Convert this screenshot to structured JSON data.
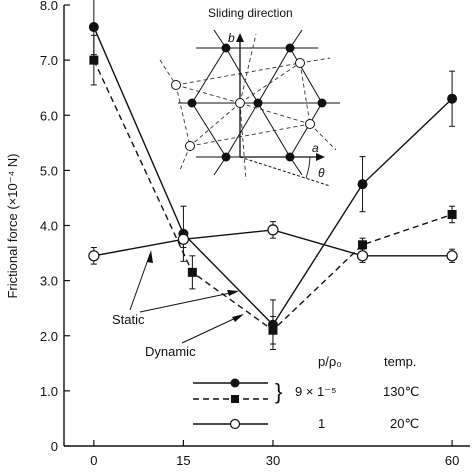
{
  "chart_data": {
    "type": "line",
    "title": "",
    "xlabel": "",
    "ylabel": "Frictional force (×10⁻⁴ N)",
    "xlim": [
      -5,
      63
    ],
    "ylim": [
      0,
      8.0
    ],
    "x_ticks": [
      0,
      15,
      30,
      60
    ],
    "y_ticks": [
      "0",
      "1.0",
      "2.0",
      "3.0",
      "4.0",
      "5.0",
      "6.0",
      "7.0",
      "8.0"
    ],
    "series": [
      {
        "style": "solid",
        "marker": "filled-circle",
        "x": [
          0,
          15,
          30,
          45,
          60
        ],
        "y": [
          7.6,
          3.85,
          2.2,
          4.75,
          6.3
        ],
        "err": [
          0.5,
          0.5,
          0.45,
          0.5,
          0.5
        ]
      },
      {
        "style": "dashed",
        "marker": "filled-square",
        "x": [
          0,
          16.5,
          30,
          45,
          60
        ],
        "y": [
          7.0,
          3.15,
          2.1,
          3.65,
          4.2
        ],
        "err": [
          0.45,
          0.3,
          0.25,
          0.12,
          0.15
        ]
      },
      {
        "style": "solid",
        "marker": "open-circle",
        "x": [
          0,
          15,
          30,
          45,
          60
        ],
        "y": [
          3.45,
          3.75,
          3.92,
          3.45,
          3.45
        ],
        "err": [
          0.15,
          0.15,
          0.15,
          0.12,
          0.12
        ]
      }
    ],
    "annotations": {
      "static": "Static",
      "dynamic": "Dynamic"
    },
    "legend": {
      "header_ratio": "p/ρ₀",
      "header_temp": "temp.",
      "rows": [
        {
          "ratio": "9 × 1⁻⁵",
          "temp": "130℃"
        },
        {
          "ratio": "1",
          "temp": "20℃"
        }
      ]
    },
    "inset": {
      "title": "Sliding direction",
      "axis_b": "b",
      "axis_a": "a",
      "angle": "θ"
    }
  }
}
